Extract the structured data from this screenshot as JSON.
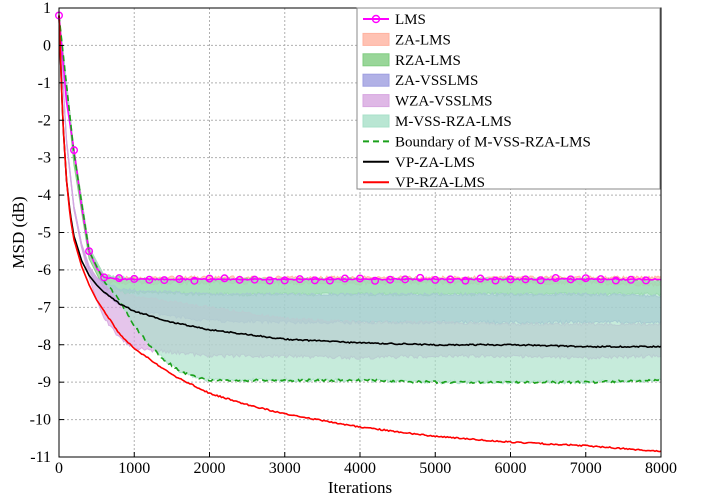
{
  "chart_data": {
    "type": "line",
    "xlabel": "Iterations",
    "ylabel": "MSD (dB)",
    "xlim": [
      0,
      8000
    ],
    "ylim": [
      -11,
      1
    ],
    "x_ticks": [
      0,
      1000,
      2000,
      3000,
      4000,
      5000,
      6000,
      7000,
      8000
    ],
    "y_ticks": [
      1,
      0,
      -1,
      -2,
      -3,
      -4,
      -5,
      -6,
      -7,
      -8,
      -9,
      -10,
      -11
    ],
    "grid": true,
    "legend_position": "top-right",
    "series": [
      {
        "name": "LMS",
        "kind": "line-markers",
        "color": "#ff00ff",
        "x": [
          0,
          100,
          200,
          300,
          400,
          500,
          600,
          800,
          1000,
          1500,
          2000,
          3000,
          4000,
          5000,
          6000,
          7000,
          8000
        ],
        "y": [
          0.8,
          -1.5,
          -2.8,
          -4.3,
          -5.5,
          -5.95,
          -6.2,
          -6.25,
          -6.25,
          -6.25,
          -6.25,
          -6.25,
          -6.25,
          -6.25,
          -6.25,
          -6.25,
          -6.25
        ],
        "marker_x": [
          0,
          200,
          400,
          600,
          800,
          1000,
          1200,
          1400,
          1600,
          1800,
          2000,
          2200,
          2400,
          2600,
          2800,
          3000,
          3200,
          3400,
          3600,
          3800,
          4000,
          4200,
          4400,
          4600,
          4800,
          5000,
          5200,
          5400,
          5600,
          5800,
          6000,
          6200,
          6400,
          6600,
          6800,
          7000,
          7200,
          7400,
          7600,
          7800
        ]
      },
      {
        "name": "ZA-LMS",
        "kind": "band",
        "color": "#ffb3a0",
        "x": [
          0,
          200,
          400,
          600,
          800,
          1000,
          2000,
          3000,
          4000,
          5000,
          6000,
          7000,
          8000
        ],
        "upper": [
          0.8,
          -2.8,
          -5.4,
          -6.15,
          -6.2,
          -6.2,
          -6.2,
          -6.2,
          -6.2,
          -6.2,
          -6.2,
          -6.2,
          -6.2
        ],
        "lower": [
          0.8,
          -2.9,
          -5.5,
          -6.3,
          -6.35,
          -6.35,
          -6.35,
          -6.35,
          -6.35,
          -6.35,
          -6.35,
          -6.35,
          -6.4
        ]
      },
      {
        "name": "RZA-LMS",
        "kind": "band",
        "color": "#80cc80",
        "x": [
          0,
          200,
          400,
          600,
          800,
          1000,
          2000,
          3000,
          4000,
          5000,
          6000,
          7000,
          8000
        ],
        "upper": [
          0.8,
          -2.8,
          -5.4,
          -6.15,
          -6.2,
          -6.25,
          -6.25,
          -6.25,
          -6.25,
          -6.25,
          -6.25,
          -6.25,
          -6.3
        ],
        "lower": [
          0.8,
          -3.2,
          -5.7,
          -6.5,
          -6.6,
          -6.6,
          -6.65,
          -6.65,
          -6.65,
          -6.65,
          -6.65,
          -6.65,
          -6.65
        ]
      },
      {
        "name": "ZA-VSSLMS",
        "kind": "band",
        "color": "#9e9ee0",
        "x": [
          0,
          100,
          200,
          300,
          400,
          500,
          600,
          800,
          1000,
          2000,
          3000,
          4000,
          5000,
          6000,
          7000,
          8000
        ],
        "upper": [
          0.8,
          -2.5,
          -4.3,
          -5.3,
          -5.9,
          -6.2,
          -6.35,
          -6.5,
          -6.55,
          -6.65,
          -6.65,
          -6.65,
          -6.65,
          -6.65,
          -6.65,
          -6.7
        ],
        "lower": [
          0.8,
          -2.6,
          -4.4,
          -5.4,
          -6.0,
          -6.4,
          -6.6,
          -6.9,
          -7.1,
          -7.35,
          -7.4,
          -7.4,
          -7.4,
          -7.4,
          -7.4,
          -7.4
        ]
      },
      {
        "name": "WZA-VSSLMS",
        "kind": "band",
        "color": "#d7a6e0",
        "x": [
          0,
          100,
          200,
          300,
          400,
          500,
          600,
          800,
          1000,
          2000,
          3000,
          4000,
          5000,
          6000,
          7000,
          8000
        ],
        "upper": [
          0.8,
          -2.5,
          -4.3,
          -5.3,
          -5.9,
          -6.2,
          -6.4,
          -6.6,
          -6.7,
          -7.0,
          -7.3,
          -7.4,
          -7.4,
          -7.45,
          -7.45,
          -7.45
        ],
        "lower": [
          0.8,
          -2.6,
          -4.4,
          -5.4,
          -6.2,
          -6.8,
          -7.3,
          -7.8,
          -8.1,
          -8.3,
          -8.3,
          -8.35,
          -8.3,
          -8.3,
          -8.35,
          -8.3
        ]
      },
      {
        "name": "M-VSS-RZA-LMS",
        "kind": "band",
        "color": "#a8e0c8",
        "x": [
          0,
          200,
          400,
          600,
          800,
          1000,
          1200,
          1400,
          1600,
          1800,
          2000,
          3000,
          4000,
          5000,
          6000,
          7000,
          8000
        ],
        "upper": [
          0.8,
          -2.8,
          -5.4,
          -6.15,
          -6.2,
          -6.25,
          -6.25,
          -6.25,
          -6.25,
          -6.25,
          -6.25,
          -6.25,
          -6.25,
          -6.25,
          -6.25,
          -6.25,
          -6.3
        ],
        "lower": [
          0.8,
          -2.9,
          -5.5,
          -6.3,
          -6.8,
          -7.5,
          -8.0,
          -8.4,
          -8.7,
          -8.85,
          -8.95,
          -8.95,
          -8.95,
          -9.0,
          -9.0,
          -9.0,
          -8.95
        ]
      },
      {
        "name": "Boundary of M-VSS-RZA-LMS",
        "kind": "dashed",
        "color": "#1aa01a",
        "x": [
          0,
          200,
          400,
          600,
          800,
          1000,
          1200,
          1400,
          1600,
          1800,
          2000,
          3000,
          4000,
          5000,
          6000,
          7000,
          8000
        ],
        "y": [
          0.8,
          -2.9,
          -5.5,
          -6.3,
          -6.8,
          -7.5,
          -8.0,
          -8.4,
          -8.7,
          -8.85,
          -8.95,
          -8.95,
          -8.95,
          -9.0,
          -9.0,
          -9.0,
          -8.95
        ]
      },
      {
        "name": "VP-ZA-LMS",
        "kind": "line",
        "color": "#000000",
        "x": [
          0,
          50,
          100,
          150,
          200,
          300,
          400,
          500,
          600,
          800,
          1000,
          1500,
          2000,
          3000,
          4000,
          5000,
          6000,
          7000,
          8000
        ],
        "y": [
          0.8,
          -2.0,
          -3.6,
          -4.5,
          -5.1,
          -5.75,
          -6.15,
          -6.4,
          -6.6,
          -6.9,
          -7.1,
          -7.4,
          -7.6,
          -7.85,
          -7.95,
          -8.0,
          -8.0,
          -8.05,
          -8.05
        ]
      },
      {
        "name": "VP-RZA-LMS",
        "kind": "line",
        "color": "#ff0000",
        "x": [
          0,
          50,
          100,
          150,
          200,
          300,
          400,
          500,
          600,
          800,
          1000,
          1500,
          2000,
          2500,
          3000,
          4000,
          5000,
          6000,
          7000,
          8000
        ],
        "y": [
          0.8,
          -2.0,
          -3.6,
          -4.6,
          -5.2,
          -5.9,
          -6.4,
          -6.8,
          -7.1,
          -7.7,
          -8.1,
          -8.8,
          -9.3,
          -9.6,
          -9.85,
          -10.2,
          -10.45,
          -10.6,
          -10.7,
          -10.85
        ]
      }
    ]
  }
}
